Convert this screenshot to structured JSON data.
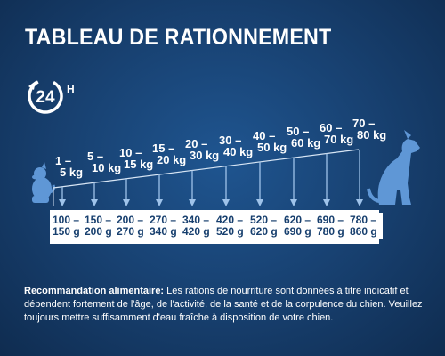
{
  "title": "TABLEAU DE RATIONNEMENT",
  "badge": {
    "number": "24",
    "letter": "H",
    "icon": "clock-24h-icon"
  },
  "weights": [
    {
      "l1": "1 –",
      "l2": "5 kg"
    },
    {
      "l1": "5 –",
      "l2": "10 kg"
    },
    {
      "l1": "10 –",
      "l2": "15 kg"
    },
    {
      "l1": "15 –",
      "l2": "20 kg"
    },
    {
      "l1": "20 –",
      "l2": "30 kg"
    },
    {
      "l1": "30 –",
      "l2": "40 kg"
    },
    {
      "l1": "40 –",
      "l2": "50 kg"
    },
    {
      "l1": "50 –",
      "l2": "60 kg"
    },
    {
      "l1": "60 –",
      "l2": "70 kg"
    },
    {
      "l1": "70 –",
      "l2": "80 kg"
    }
  ],
  "rations": [
    {
      "l1": "100 –",
      "l2": "150 g"
    },
    {
      "l1": "150 –",
      "l2": "200 g"
    },
    {
      "l1": "200 –",
      "l2": "270 g"
    },
    {
      "l1": "270 –",
      "l2": "340 g"
    },
    {
      "l1": "340 –",
      "l2": "420 g"
    },
    {
      "l1": "420 –",
      "l2": "520 g"
    },
    {
      "l1": "520 –",
      "l2": "620 g"
    },
    {
      "l1": "620 –",
      "l2": "690 g"
    },
    {
      "l1": "690 –",
      "l2": "780 g"
    },
    {
      "l1": "780 –",
      "l2": "860 g"
    }
  ],
  "icons": {
    "small_dog": "small-dog-icon",
    "large_dog": "large-dog-icon"
  },
  "colors": {
    "background": "#173f6e",
    "dog": "#5f97d6",
    "arrow": "#9fc3ea"
  },
  "note": {
    "label": "Recommandation alimentaire:",
    "text": " Les rations de nourriture sont données à titre indicatif et dépendent fortement de l'âge, de l'activité, de la santé et de la corpulence du chien. Veuillez toujours mettre suffisamment d'eau fraîche à disposition de votre chien."
  }
}
